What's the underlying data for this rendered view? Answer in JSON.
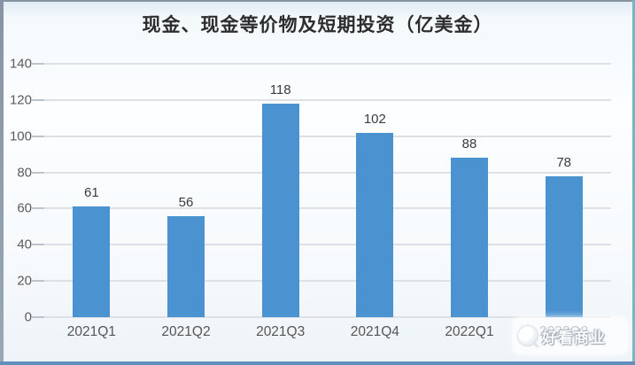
{
  "chart_data": {
    "type": "bar",
    "title": "现金、现金等价物及短期投资（亿美金）",
    "categories": [
      "2021Q1",
      "2021Q2",
      "2021Q3",
      "2021Q4",
      "2022Q1",
      "2022Q2"
    ],
    "values": [
      61,
      56,
      118,
      102,
      88,
      78
    ],
    "xlabel": "",
    "ylabel": "",
    "ylim": [
      0,
      140
    ],
    "yticks": [
      0,
      20,
      40,
      60,
      80,
      100,
      120,
      140
    ],
    "grid": true,
    "legend_position": "none",
    "bar_color": "#4b92d0",
    "gridline_color": "#dde1e5",
    "value_label_color": "#3c3c3c",
    "axis_label_color": "#5a5a5a"
  },
  "watermark": {
    "text": "好看商业",
    "logo_icon": "watermark-logo-icon"
  }
}
